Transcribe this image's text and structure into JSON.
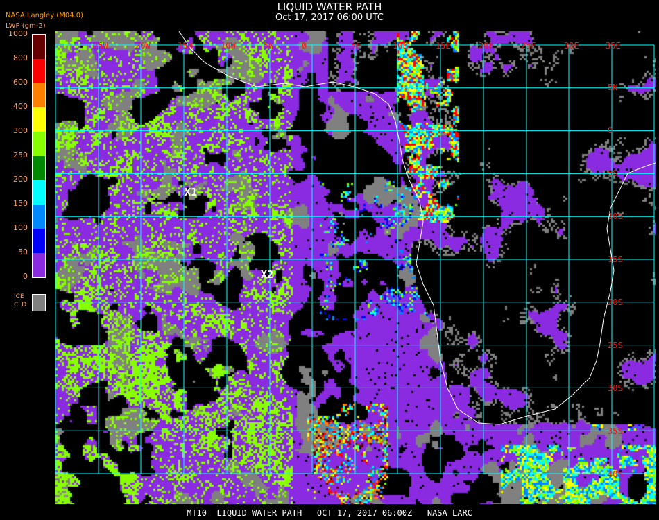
{
  "header": {
    "title": "LIQUID WATER PATH",
    "subtitle": "Oct 17, 2017 06:00 UTC",
    "credit": "NASA Langley (M04.0)",
    "units": "LWP (gm-2)"
  },
  "legend": {
    "ticks": [
      "0",
      "50",
      "100",
      "150",
      "200",
      "250",
      "300",
      "400",
      "600",
      "800",
      "1000"
    ],
    "colors": [
      "#8a2be2",
      "#0000ff",
      "#0088ff",
      "#00ffff",
      "#008800",
      "#88ff00",
      "#ffff00",
      "#ff8000",
      "#ff0000",
      "#660000"
    ],
    "ice_label_1": "ICE",
    "ice_label_2": "CLD",
    "ice_color": "#808080"
  },
  "grid": {
    "lon_labels": [
      "25W",
      "20W",
      "15W",
      "10W",
      "5W",
      "0",
      "5E",
      "10E",
      "15E",
      "20E",
      "25E",
      "30E",
      "35E"
    ],
    "lat_labels": [
      "5N",
      "0",
      "5S",
      "10S",
      "15S",
      "20S",
      "25S",
      "30S",
      "35S",
      "40S"
    ],
    "grid_color": "#00ffff",
    "label_color": "#ff1010",
    "coast_color": "#ffffff"
  },
  "markers": [
    {
      "label": "X1"
    },
    {
      "label": "X2"
    }
  ],
  "footer": "MT10  LIQUID WATER PATH   OCT 17, 2017 06:00Z   NASA LARC"
}
